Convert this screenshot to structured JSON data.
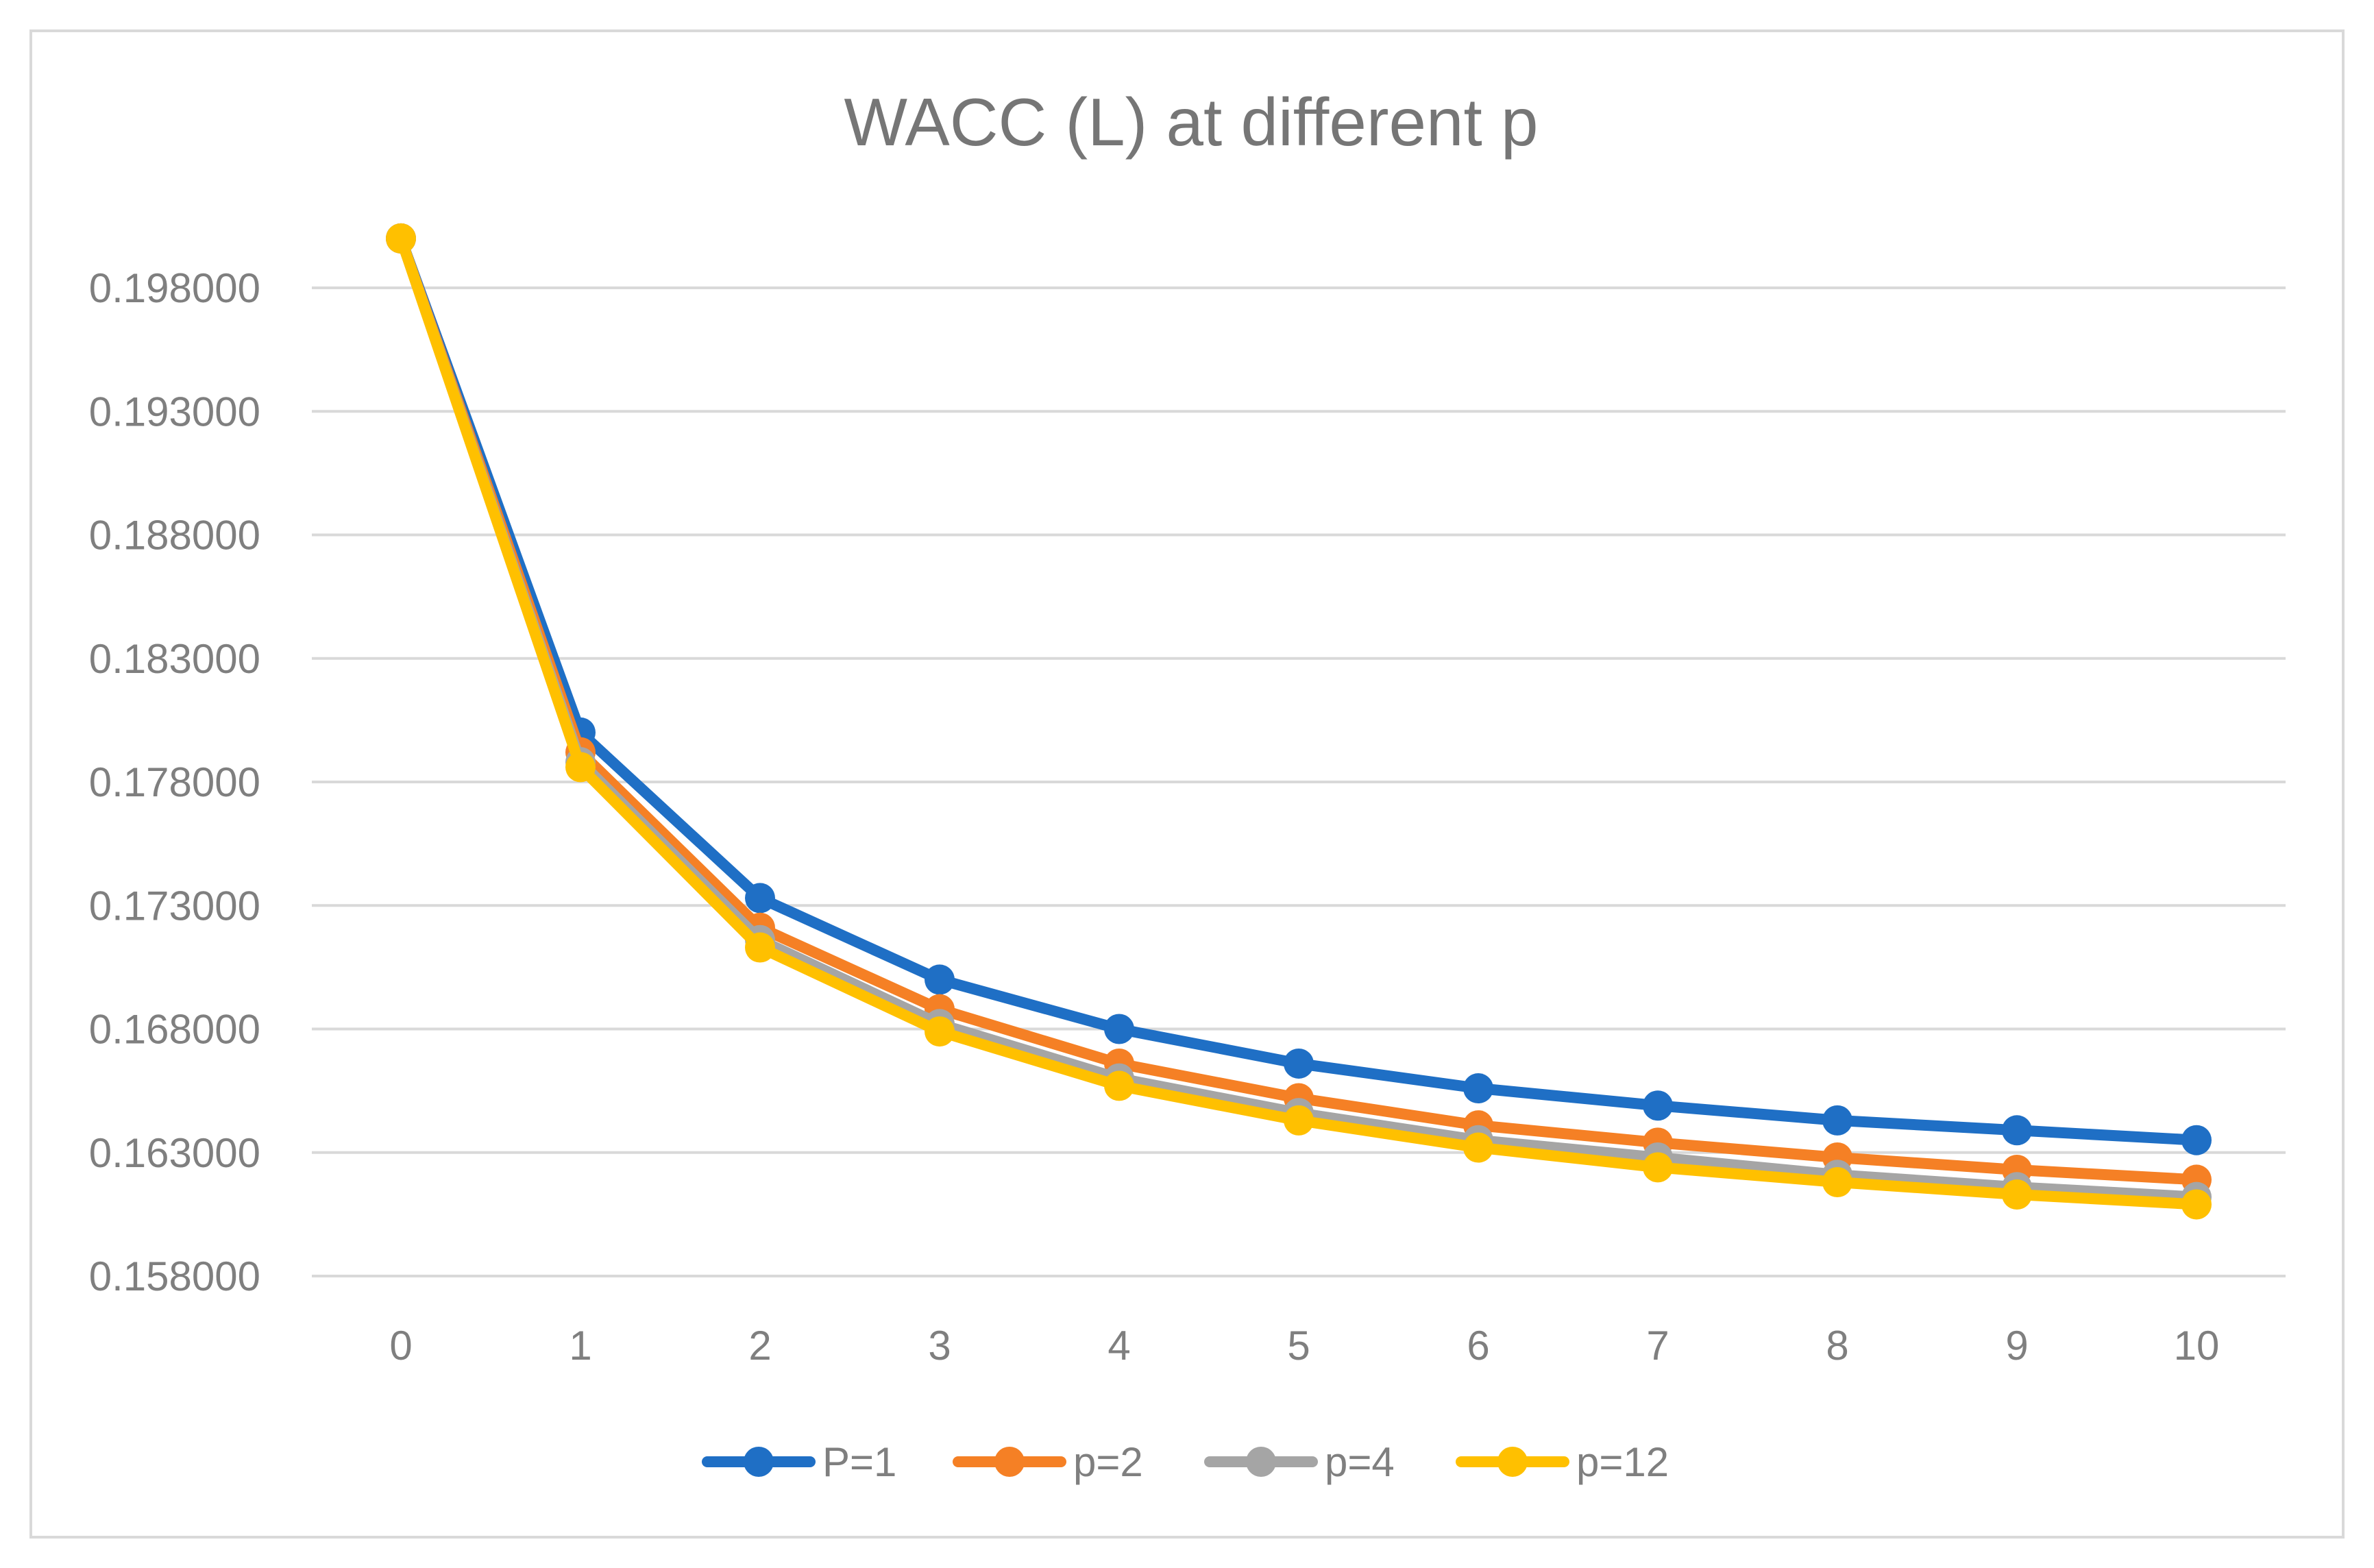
{
  "chart_data": {
    "type": "line",
    "title": "WACC (L) at different p",
    "xlabel": "",
    "ylabel": "",
    "x": [
      0,
      1,
      2,
      3,
      4,
      5,
      6,
      7,
      8,
      9,
      10
    ],
    "x_tick_labels": [
      "0",
      "1",
      "2",
      "3",
      "4",
      "5",
      "6",
      "7",
      "8",
      "9",
      "10"
    ],
    "y_ticks": [
      0.158,
      0.163,
      0.168,
      0.173,
      0.178,
      0.183,
      0.188,
      0.193,
      0.198
    ],
    "y_tick_labels": [
      "0.158000",
      "0.163000",
      "0.168000",
      "0.173000",
      "0.178000",
      "0.183000",
      "0.188000",
      "0.193000",
      "0.198000"
    ],
    "ylim": [
      0.158,
      0.198
    ],
    "grid": true,
    "legend_position": "bottom",
    "series": [
      {
        "name": "P=1",
        "color": "#1f6fc5",
        "values": [
          0.2,
          0.18,
          0.1733,
          0.17,
          0.168,
          0.1666,
          0.1656,
          0.1649,
          0.1643,
          0.1639,
          0.1635
        ]
      },
      {
        "name": "p=2",
        "color": "#f58025",
        "values": [
          0.2,
          0.1792,
          0.1721,
          0.1688,
          0.1666,
          0.1652,
          0.1641,
          0.1634,
          0.1628,
          0.1623,
          0.1619
        ]
      },
      {
        "name": "p=4",
        "color": "#a5a5a5",
        "values": [
          0.2,
          0.1788,
          0.1716,
          0.1682,
          0.166,
          0.1646,
          0.1635,
          0.1628,
          0.1621,
          0.1616,
          0.1612
        ]
      },
      {
        "name": "p=12",
        "color": "#ffc000",
        "values": [
          0.2,
          0.1786,
          0.1713,
          0.1679,
          0.1657,
          0.1643,
          0.1632,
          0.1624,
          0.1618,
          0.1613,
          0.1609
        ]
      }
    ]
  }
}
